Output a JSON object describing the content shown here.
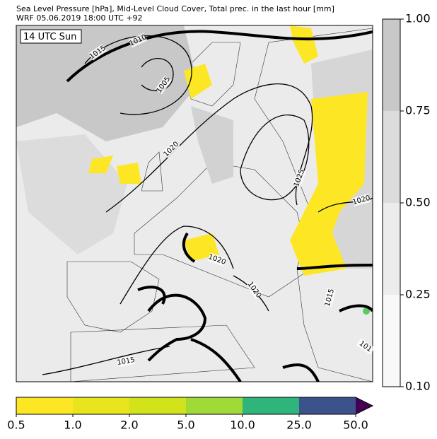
{
  "header": {
    "line1": "Sea Level Pressure [hPa], Mid-Level Cloud Cover, Total prec. in the last hour [mm]",
    "line2": "WRF 05.06.2019 18:00 UTC +92"
  },
  "map": {
    "time_label": "14 UTC Sun",
    "contour_labels": [
      "1015",
      "1010",
      "1005",
      "1020",
      "1025",
      "1020",
      "1020",
      "1020",
      "1015",
      "1015",
      "101"
    ]
  },
  "cloud_colorbar": {
    "ticks": [
      "0.10",
      "0.25",
      "0.50",
      "0.75",
      "1.00"
    ]
  },
  "precip_colorbar": {
    "ticks": [
      "0.5",
      "1.0",
      "2.0",
      "5.0",
      "10.0",
      "25.0",
      "50.0"
    ]
  }
}
